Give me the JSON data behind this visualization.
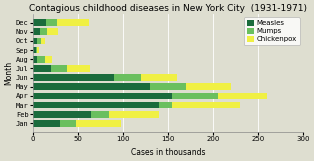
{
  "title": "Contagious childhood diseases in New York City  (1931-1971)",
  "xlabel": "Cases in thousands",
  "ylabel": "Month",
  "months": [
    "Jan",
    "Feb",
    "Mar",
    "Apr",
    "May",
    "Jun",
    "Jul",
    "Aug",
    "Sep",
    "Oct",
    "Nov",
    "Dec"
  ],
  "measles": [
    30,
    65,
    140,
    155,
    130,
    90,
    20,
    5,
    3,
    5,
    8,
    15
  ],
  "mumps": [
    18,
    20,
    15,
    50,
    40,
    30,
    18,
    8,
    2,
    4,
    8,
    12
  ],
  "chickenpox": [
    50,
    55,
    75,
    55,
    50,
    40,
    25,
    8,
    2,
    5,
    12,
    35
  ],
  "xlim": [
    0,
    300
  ],
  "xticks": [
    0,
    50,
    100,
    150,
    200,
    250,
    300
  ],
  "colors": {
    "measles": "#1a6b3c",
    "mumps": "#6abf5e",
    "chickenpox": "#f0f044"
  },
  "legend_labels": [
    "Measles",
    "Mumps",
    "Chickenpox"
  ],
  "background_color": "#deded0",
  "plot_background": "#deded0",
  "grid_color": "#ffffff",
  "title_fontsize": 6.5,
  "axis_fontsize": 5.5,
  "tick_fontsize": 5.0,
  "legend_fontsize": 5.0
}
